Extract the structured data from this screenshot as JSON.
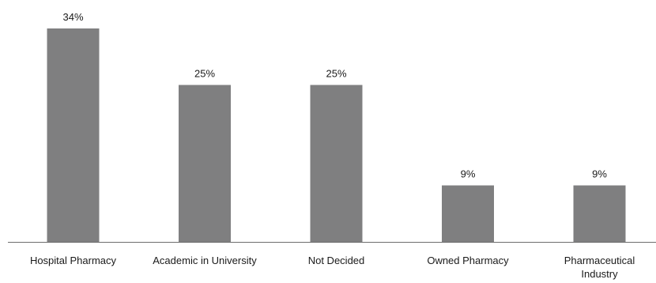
{
  "chart_data": {
    "type": "bar",
    "categories": [
      "Hospital Pharmacy",
      "Academic in University",
      "Not Decided",
      "Owned Pharmacy",
      "Pharmaceutical Industry"
    ],
    "category_lines": [
      [
        "Hospital Pharmacy"
      ],
      [
        "Academic in University"
      ],
      [
        "Not Decided"
      ],
      [
        "Owned Pharmacy"
      ],
      [
        "Pharmaceutical",
        "Industry"
      ]
    ],
    "values": [
      34,
      25,
      25,
      9,
      9
    ],
    "value_labels": [
      "34%",
      "25%",
      "25%",
      "9%",
      "9%"
    ],
    "title": "",
    "xlabel": "",
    "ylabel": "",
    "ylim": [
      0,
      34
    ],
    "grid": false,
    "legend": "none",
    "bar_color": "#7f7f80"
  }
}
